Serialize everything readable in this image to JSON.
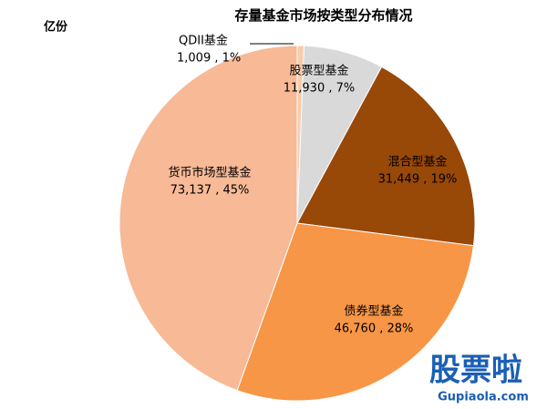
{
  "chart_data": {
    "type": "pie",
    "title": "存量基金市场按类型分布情况",
    "unit_label": "亿份",
    "categories": [
      "QDII基金",
      "股票型基金",
      "混合型基金",
      "债券型基金",
      "货币市场型基金"
    ],
    "values": [
      1009,
      11930,
      31449,
      46760,
      73137
    ],
    "value_labels": [
      "1,009 , 1%",
      "11,930 , 7%",
      "31,449 , 19%",
      "46,760 , 28%",
      "73,137 , 45%"
    ],
    "colors": [
      "#f8cbad",
      "#d9d9d9",
      "#984807",
      "#f79646",
      "#f7b996"
    ]
  },
  "watermark": {
    "brand": "股票啦",
    "site": "Gupiaola.com"
  }
}
